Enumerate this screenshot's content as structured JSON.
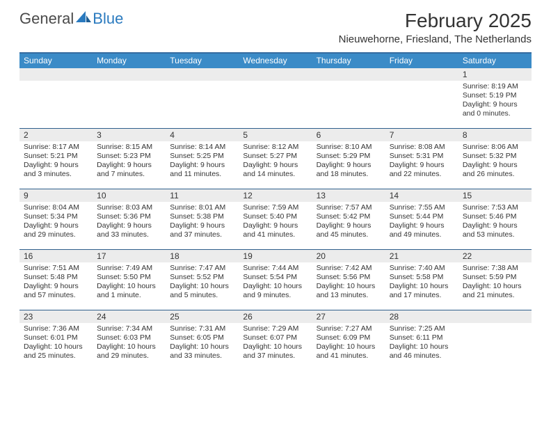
{
  "colors": {
    "header_bg": "#3b8bc7",
    "header_border": "#356ca0",
    "row_border": "#2f5f8c",
    "daynum_bg": "#ececec",
    "text": "#333333",
    "logo_gray": "#4a4a4a",
    "logo_blue": "#2a7abf"
  },
  "logo": {
    "part1": "General",
    "part2": "Blue"
  },
  "title": "February 2025",
  "location": "Nieuwehorne, Friesland, The Netherlands",
  "day_headers": [
    "Sunday",
    "Monday",
    "Tuesday",
    "Wednesday",
    "Thursday",
    "Friday",
    "Saturday"
  ],
  "weeks": [
    [
      null,
      null,
      null,
      null,
      null,
      null,
      {
        "n": "1",
        "sr": "Sunrise: 8:19 AM",
        "ss": "Sunset: 5:19 PM",
        "dl1": "Daylight: 9 hours",
        "dl2": "and 0 minutes."
      }
    ],
    [
      {
        "n": "2",
        "sr": "Sunrise: 8:17 AM",
        "ss": "Sunset: 5:21 PM",
        "dl1": "Daylight: 9 hours",
        "dl2": "and 3 minutes."
      },
      {
        "n": "3",
        "sr": "Sunrise: 8:15 AM",
        "ss": "Sunset: 5:23 PM",
        "dl1": "Daylight: 9 hours",
        "dl2": "and 7 minutes."
      },
      {
        "n": "4",
        "sr": "Sunrise: 8:14 AM",
        "ss": "Sunset: 5:25 PM",
        "dl1": "Daylight: 9 hours",
        "dl2": "and 11 minutes."
      },
      {
        "n": "5",
        "sr": "Sunrise: 8:12 AM",
        "ss": "Sunset: 5:27 PM",
        "dl1": "Daylight: 9 hours",
        "dl2": "and 14 minutes."
      },
      {
        "n": "6",
        "sr": "Sunrise: 8:10 AM",
        "ss": "Sunset: 5:29 PM",
        "dl1": "Daylight: 9 hours",
        "dl2": "and 18 minutes."
      },
      {
        "n": "7",
        "sr": "Sunrise: 8:08 AM",
        "ss": "Sunset: 5:31 PM",
        "dl1": "Daylight: 9 hours",
        "dl2": "and 22 minutes."
      },
      {
        "n": "8",
        "sr": "Sunrise: 8:06 AM",
        "ss": "Sunset: 5:32 PM",
        "dl1": "Daylight: 9 hours",
        "dl2": "and 26 minutes."
      }
    ],
    [
      {
        "n": "9",
        "sr": "Sunrise: 8:04 AM",
        "ss": "Sunset: 5:34 PM",
        "dl1": "Daylight: 9 hours",
        "dl2": "and 29 minutes."
      },
      {
        "n": "10",
        "sr": "Sunrise: 8:03 AM",
        "ss": "Sunset: 5:36 PM",
        "dl1": "Daylight: 9 hours",
        "dl2": "and 33 minutes."
      },
      {
        "n": "11",
        "sr": "Sunrise: 8:01 AM",
        "ss": "Sunset: 5:38 PM",
        "dl1": "Daylight: 9 hours",
        "dl2": "and 37 minutes."
      },
      {
        "n": "12",
        "sr": "Sunrise: 7:59 AM",
        "ss": "Sunset: 5:40 PM",
        "dl1": "Daylight: 9 hours",
        "dl2": "and 41 minutes."
      },
      {
        "n": "13",
        "sr": "Sunrise: 7:57 AM",
        "ss": "Sunset: 5:42 PM",
        "dl1": "Daylight: 9 hours",
        "dl2": "and 45 minutes."
      },
      {
        "n": "14",
        "sr": "Sunrise: 7:55 AM",
        "ss": "Sunset: 5:44 PM",
        "dl1": "Daylight: 9 hours",
        "dl2": "and 49 minutes."
      },
      {
        "n": "15",
        "sr": "Sunrise: 7:53 AM",
        "ss": "Sunset: 5:46 PM",
        "dl1": "Daylight: 9 hours",
        "dl2": "and 53 minutes."
      }
    ],
    [
      {
        "n": "16",
        "sr": "Sunrise: 7:51 AM",
        "ss": "Sunset: 5:48 PM",
        "dl1": "Daylight: 9 hours",
        "dl2": "and 57 minutes."
      },
      {
        "n": "17",
        "sr": "Sunrise: 7:49 AM",
        "ss": "Sunset: 5:50 PM",
        "dl1": "Daylight: 10 hours",
        "dl2": "and 1 minute."
      },
      {
        "n": "18",
        "sr": "Sunrise: 7:47 AM",
        "ss": "Sunset: 5:52 PM",
        "dl1": "Daylight: 10 hours",
        "dl2": "and 5 minutes."
      },
      {
        "n": "19",
        "sr": "Sunrise: 7:44 AM",
        "ss": "Sunset: 5:54 PM",
        "dl1": "Daylight: 10 hours",
        "dl2": "and 9 minutes."
      },
      {
        "n": "20",
        "sr": "Sunrise: 7:42 AM",
        "ss": "Sunset: 5:56 PM",
        "dl1": "Daylight: 10 hours",
        "dl2": "and 13 minutes."
      },
      {
        "n": "21",
        "sr": "Sunrise: 7:40 AM",
        "ss": "Sunset: 5:58 PM",
        "dl1": "Daylight: 10 hours",
        "dl2": "and 17 minutes."
      },
      {
        "n": "22",
        "sr": "Sunrise: 7:38 AM",
        "ss": "Sunset: 5:59 PM",
        "dl1": "Daylight: 10 hours",
        "dl2": "and 21 minutes."
      }
    ],
    [
      {
        "n": "23",
        "sr": "Sunrise: 7:36 AM",
        "ss": "Sunset: 6:01 PM",
        "dl1": "Daylight: 10 hours",
        "dl2": "and 25 minutes."
      },
      {
        "n": "24",
        "sr": "Sunrise: 7:34 AM",
        "ss": "Sunset: 6:03 PM",
        "dl1": "Daylight: 10 hours",
        "dl2": "and 29 minutes."
      },
      {
        "n": "25",
        "sr": "Sunrise: 7:31 AM",
        "ss": "Sunset: 6:05 PM",
        "dl1": "Daylight: 10 hours",
        "dl2": "and 33 minutes."
      },
      {
        "n": "26",
        "sr": "Sunrise: 7:29 AM",
        "ss": "Sunset: 6:07 PM",
        "dl1": "Daylight: 10 hours",
        "dl2": "and 37 minutes."
      },
      {
        "n": "27",
        "sr": "Sunrise: 7:27 AM",
        "ss": "Sunset: 6:09 PM",
        "dl1": "Daylight: 10 hours",
        "dl2": "and 41 minutes."
      },
      {
        "n": "28",
        "sr": "Sunrise: 7:25 AM",
        "ss": "Sunset: 6:11 PM",
        "dl1": "Daylight: 10 hours",
        "dl2": "and 46 minutes."
      },
      null
    ]
  ]
}
